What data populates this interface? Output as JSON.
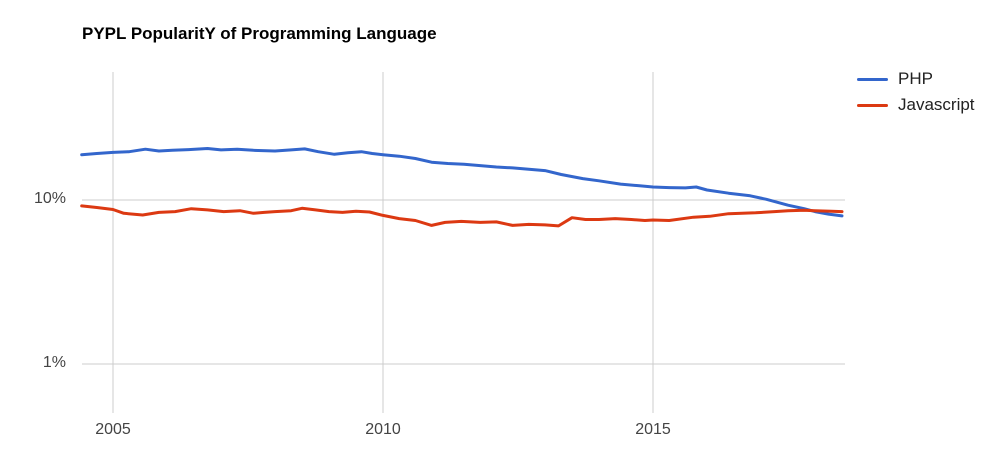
{
  "title": "PYPL PopularitY of Programming Language",
  "legend": {
    "items": [
      {
        "label": "PHP",
        "color": "#3366CC"
      },
      {
        "label": "Javascript",
        "color": "#DC3912"
      }
    ]
  },
  "axes": {
    "y_ticks": [
      {
        "label": "10%"
      },
      {
        "label": "1%"
      }
    ],
    "x_ticks": [
      {
        "label": "2005"
      },
      {
        "label": "2010"
      },
      {
        "label": "2015"
      }
    ]
  },
  "colors": {
    "php": "#3366CC",
    "javascript": "#DC3912",
    "gridline": "#CCCCCC",
    "axis_label": "#444444"
  },
  "chart_data": {
    "type": "line",
    "title": "PYPL PopularitY of Programming Language",
    "xlabel": "",
    "ylabel": "",
    "y_scale": "log",
    "grid": true,
    "legend_position": "right",
    "x_range": [
      2004.4,
      2018.5
    ],
    "y_tick_percents": [
      10,
      1
    ],
    "x_tick_years": [
      2005,
      2010,
      2015
    ],
    "series": [
      {
        "name": "PHP",
        "color": "#3366CC",
        "points": [
          [
            2004.42,
            18.9
          ],
          [
            2004.7,
            19.2
          ],
          [
            2005.0,
            19.5
          ],
          [
            2005.3,
            19.7
          ],
          [
            2005.6,
            20.4
          ],
          [
            2005.85,
            19.9
          ],
          [
            2006.1,
            20.1
          ],
          [
            2006.4,
            20.3
          ],
          [
            2006.75,
            20.6
          ],
          [
            2007.0,
            20.2
          ],
          [
            2007.3,
            20.4
          ],
          [
            2007.6,
            20.1
          ],
          [
            2008.0,
            19.9
          ],
          [
            2008.3,
            20.2
          ],
          [
            2008.55,
            20.5
          ],
          [
            2008.8,
            19.7
          ],
          [
            2009.1,
            19.0
          ],
          [
            2009.35,
            19.4
          ],
          [
            2009.6,
            19.7
          ],
          [
            2009.8,
            19.2
          ],
          [
            2010.0,
            18.9
          ],
          [
            2010.3,
            18.5
          ],
          [
            2010.6,
            17.9
          ],
          [
            2010.9,
            17.0
          ],
          [
            2011.2,
            16.7
          ],
          [
            2011.5,
            16.5
          ],
          [
            2011.8,
            16.2
          ],
          [
            2012.1,
            15.9
          ],
          [
            2012.4,
            15.7
          ],
          [
            2012.7,
            15.4
          ],
          [
            2013.0,
            15.1
          ],
          [
            2013.3,
            14.3
          ],
          [
            2013.7,
            13.5
          ],
          [
            2014.0,
            13.1
          ],
          [
            2014.4,
            12.5
          ],
          [
            2014.75,
            12.2
          ],
          [
            2015.0,
            12.0
          ],
          [
            2015.3,
            11.9
          ],
          [
            2015.6,
            11.85
          ],
          [
            2015.8,
            12.0
          ],
          [
            2016.0,
            11.5
          ],
          [
            2016.4,
            11.0
          ],
          [
            2016.8,
            10.6
          ],
          [
            2017.1,
            10.1
          ],
          [
            2017.5,
            9.3
          ],
          [
            2017.8,
            8.85
          ],
          [
            2018.0,
            8.5
          ],
          [
            2018.25,
            8.2
          ],
          [
            2018.5,
            8.0
          ]
        ]
      },
      {
        "name": "Javascript",
        "color": "#DC3912",
        "points": [
          [
            2004.42,
            9.2
          ],
          [
            2004.7,
            9.0
          ],
          [
            2005.0,
            8.75
          ],
          [
            2005.2,
            8.3
          ],
          [
            2005.55,
            8.1
          ],
          [
            2005.85,
            8.4
          ],
          [
            2006.15,
            8.5
          ],
          [
            2006.45,
            8.85
          ],
          [
            2006.75,
            8.7
          ],
          [
            2007.05,
            8.5
          ],
          [
            2007.35,
            8.6
          ],
          [
            2007.6,
            8.3
          ],
          [
            2007.8,
            8.4
          ],
          [
            2008.0,
            8.5
          ],
          [
            2008.3,
            8.6
          ],
          [
            2008.5,
            8.9
          ],
          [
            2008.75,
            8.7
          ],
          [
            2009.0,
            8.5
          ],
          [
            2009.25,
            8.4
          ],
          [
            2009.5,
            8.55
          ],
          [
            2009.75,
            8.45
          ],
          [
            2010.0,
            8.05
          ],
          [
            2010.3,
            7.7
          ],
          [
            2010.6,
            7.5
          ],
          [
            2010.9,
            7.0
          ],
          [
            2011.15,
            7.3
          ],
          [
            2011.45,
            7.4
          ],
          [
            2011.8,
            7.3
          ],
          [
            2012.1,
            7.35
          ],
          [
            2012.4,
            7.0
          ],
          [
            2012.7,
            7.1
          ],
          [
            2013.0,
            7.05
          ],
          [
            2013.25,
            6.95
          ],
          [
            2013.5,
            7.8
          ],
          [
            2013.75,
            7.6
          ],
          [
            2014.0,
            7.6
          ],
          [
            2014.3,
            7.7
          ],
          [
            2014.6,
            7.6
          ],
          [
            2014.85,
            7.5
          ],
          [
            2015.0,
            7.55
          ],
          [
            2015.3,
            7.5
          ],
          [
            2015.75,
            7.85
          ],
          [
            2016.05,
            7.95
          ],
          [
            2016.4,
            8.25
          ],
          [
            2016.9,
            8.35
          ],
          [
            2017.25,
            8.5
          ],
          [
            2017.5,
            8.6
          ],
          [
            2017.8,
            8.65
          ],
          [
            2018.0,
            8.6
          ],
          [
            2018.3,
            8.55
          ],
          [
            2018.5,
            8.5
          ]
        ]
      }
    ]
  }
}
